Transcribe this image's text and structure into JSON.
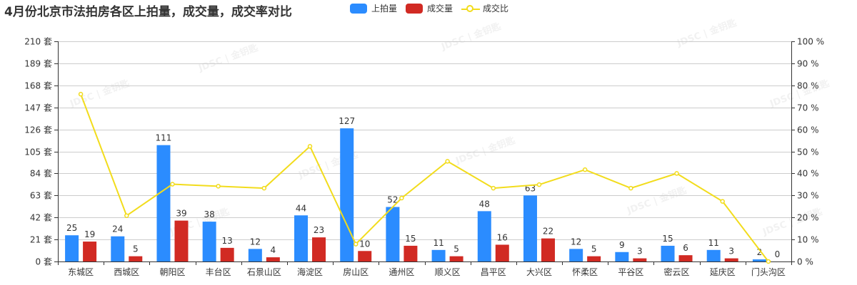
{
  "chart_data": {
    "type": "bar",
    "title": "4月份北京市法拍房各区上拍量，成交量，成交率对比",
    "categories": [
      "东城区",
      "西城区",
      "朝阳区",
      "丰台区",
      "石景山区",
      "海淀区",
      "房山区",
      "通州区",
      "顺义区",
      "昌平区",
      "大兴区",
      "怀柔区",
      "平谷区",
      "密云区",
      "延庆区",
      "门头沟区"
    ],
    "series": [
      {
        "name": "上拍量",
        "type": "bar",
        "axis": "left",
        "color": "#2b8cff",
        "values": [
          25,
          24,
          111,
          38,
          12,
          44,
          127,
          52,
          11,
          48,
          63,
          12,
          9,
          15,
          11,
          2
        ]
      },
      {
        "name": "成交量",
        "type": "bar",
        "axis": "left",
        "color": "#d12a23",
        "values": [
          19,
          5,
          39,
          13,
          4,
          23,
          10,
          15,
          5,
          16,
          22,
          5,
          3,
          6,
          3,
          0
        ]
      },
      {
        "name": "成交比",
        "type": "line",
        "axis": "right",
        "color": "#f2dc1c",
        "values": [
          76,
          20.8,
          35.1,
          34.2,
          33.3,
          52.3,
          7.9,
          28.8,
          45.5,
          33.3,
          34.9,
          41.7,
          33.3,
          40,
          27.3,
          0
        ]
      }
    ],
    "y_left": {
      "min": 0,
      "max": 210,
      "ticks": [
        0,
        21,
        42,
        63,
        84,
        105,
        126,
        147,
        168,
        189,
        210
      ],
      "unit": "套"
    },
    "y_right": {
      "min": 0,
      "max": 100,
      "ticks": [
        0,
        10,
        20,
        30,
        40,
        50,
        60,
        70,
        80,
        90,
        100
      ],
      "unit": "%"
    },
    "grid": true,
    "legend_position": "top"
  },
  "legend": {
    "items": [
      {
        "label": "上拍量",
        "color": "#2b8cff"
      },
      {
        "label": "成交量",
        "color": "#d12a23"
      },
      {
        "label": "成交比",
        "color": "#f2dc1c"
      }
    ]
  },
  "watermark": "JDSC | 金钥匙"
}
